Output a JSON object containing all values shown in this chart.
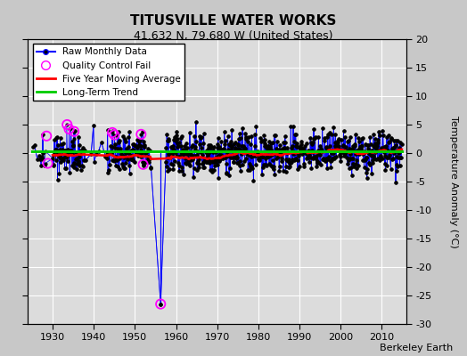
{
  "title": "TITUSVILLE WATER WORKS",
  "subtitle": "41.632 N, 79.680 W (United States)",
  "ylabel": "Temperature Anomaly (°C)",
  "credit": "Berkeley Earth",
  "xlim": [
    1924,
    2016
  ],
  "ylim": [
    -30,
    20
  ],
  "yticks": [
    -30,
    -25,
    -20,
    -15,
    -10,
    -5,
    0,
    5,
    10,
    15,
    20
  ],
  "xticks": [
    1930,
    1940,
    1950,
    1960,
    1970,
    1980,
    1990,
    2000,
    2010
  ],
  "background_color": "#c8c8c8",
  "plot_bg_color": "#dcdcdc",
  "grid_color": "#ffffff",
  "raw_color": "#0000ff",
  "raw_marker_color": "#000000",
  "qc_fail_color": "#ff00ff",
  "moving_avg_color": "#ff0000",
  "trend_color": "#00cc00",
  "seed": 42,
  "year_start": 1925,
  "year_end": 2014,
  "outlier_year": 1956.25,
  "outlier_val": -26.5,
  "qc_fail_points_early": [
    [
      1928.5,
      3.0
    ],
    [
      1928.8,
      -1.8
    ],
    [
      1933.5,
      5.0
    ],
    [
      1934.0,
      4.2
    ],
    [
      1935.2,
      3.8
    ],
    [
      1944.5,
      3.6
    ],
    [
      1945.0,
      3.2
    ],
    [
      1951.5,
      3.3
    ],
    [
      1952.0,
      -2.0
    ]
  ]
}
